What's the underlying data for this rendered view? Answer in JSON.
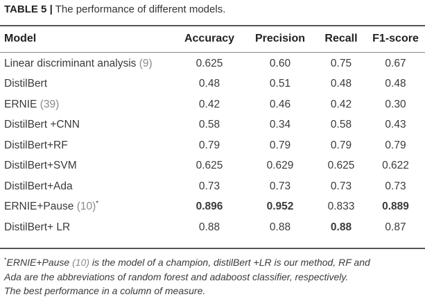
{
  "caption": {
    "label": "TABLE 5",
    "separator": "|",
    "text": "The performance of different models."
  },
  "table": {
    "headers": [
      "Model",
      "Accuracy",
      "Precision",
      "Recall",
      "F1-score"
    ],
    "rows": [
      {
        "model": "Linear discriminant analysis",
        "ref": "(9)",
        "star": "",
        "accuracy": "0.625",
        "precision": "0.60",
        "recall": "0.75",
        "f1": "0.67",
        "bold": []
      },
      {
        "model": "DistilBert",
        "ref": "",
        "star": "",
        "accuracy": "0.48",
        "precision": "0.51",
        "recall": "0.48",
        "f1": "0.48",
        "bold": []
      },
      {
        "model": "ERNIE",
        "ref": "(39)",
        "star": "",
        "accuracy": "0.42",
        "precision": "0.46",
        "recall": "0.42",
        "f1": "0.30",
        "bold": []
      },
      {
        "model": "DistilBert +CNN",
        "ref": "",
        "star": "",
        "accuracy": "0.58",
        "precision": "0.34",
        "recall": "0.58",
        "f1": "0.43",
        "bold": []
      },
      {
        "model": "DistilBert+RF",
        "ref": "",
        "star": "",
        "accuracy": "0.79",
        "precision": "0.79",
        "recall": "0.79",
        "f1": "0.79",
        "bold": []
      },
      {
        "model": "DistilBert+SVM",
        "ref": "",
        "star": "",
        "accuracy": "0.625",
        "precision": "0.629",
        "recall": "0.625",
        "f1": "0.622",
        "bold": []
      },
      {
        "model": "DistilBert+Ada",
        "ref": "",
        "star": "",
        "accuracy": "0.73",
        "precision": "0.73",
        "recall": "0.73",
        "f1": "0.73",
        "bold": []
      },
      {
        "model": "ERNIE+Pause",
        "ref": "(10)",
        "star": "*",
        "accuracy": "0.896",
        "precision": "0.952",
        "recall": "0.833",
        "f1": "0.889",
        "bold": [
          "accuracy",
          "precision",
          "f1"
        ]
      },
      {
        "model": "DistilBert+ LR",
        "ref": "",
        "star": "",
        "accuracy": "0.88",
        "precision": "0.88",
        "recall": "0.88",
        "f1": "0.87",
        "bold": [
          "recall"
        ]
      }
    ]
  },
  "footnote": {
    "star": "*",
    "line1_a": "ERNIE+Pause",
    "line1_ref": "(10)",
    "line1_b": "is the model of a champion, distilBert +LR is our method, RF and",
    "line2": "Ada are the abbreviations of random forest and adaboost classifier, respectively.",
    "line3": "The best performance in a column of measure."
  }
}
